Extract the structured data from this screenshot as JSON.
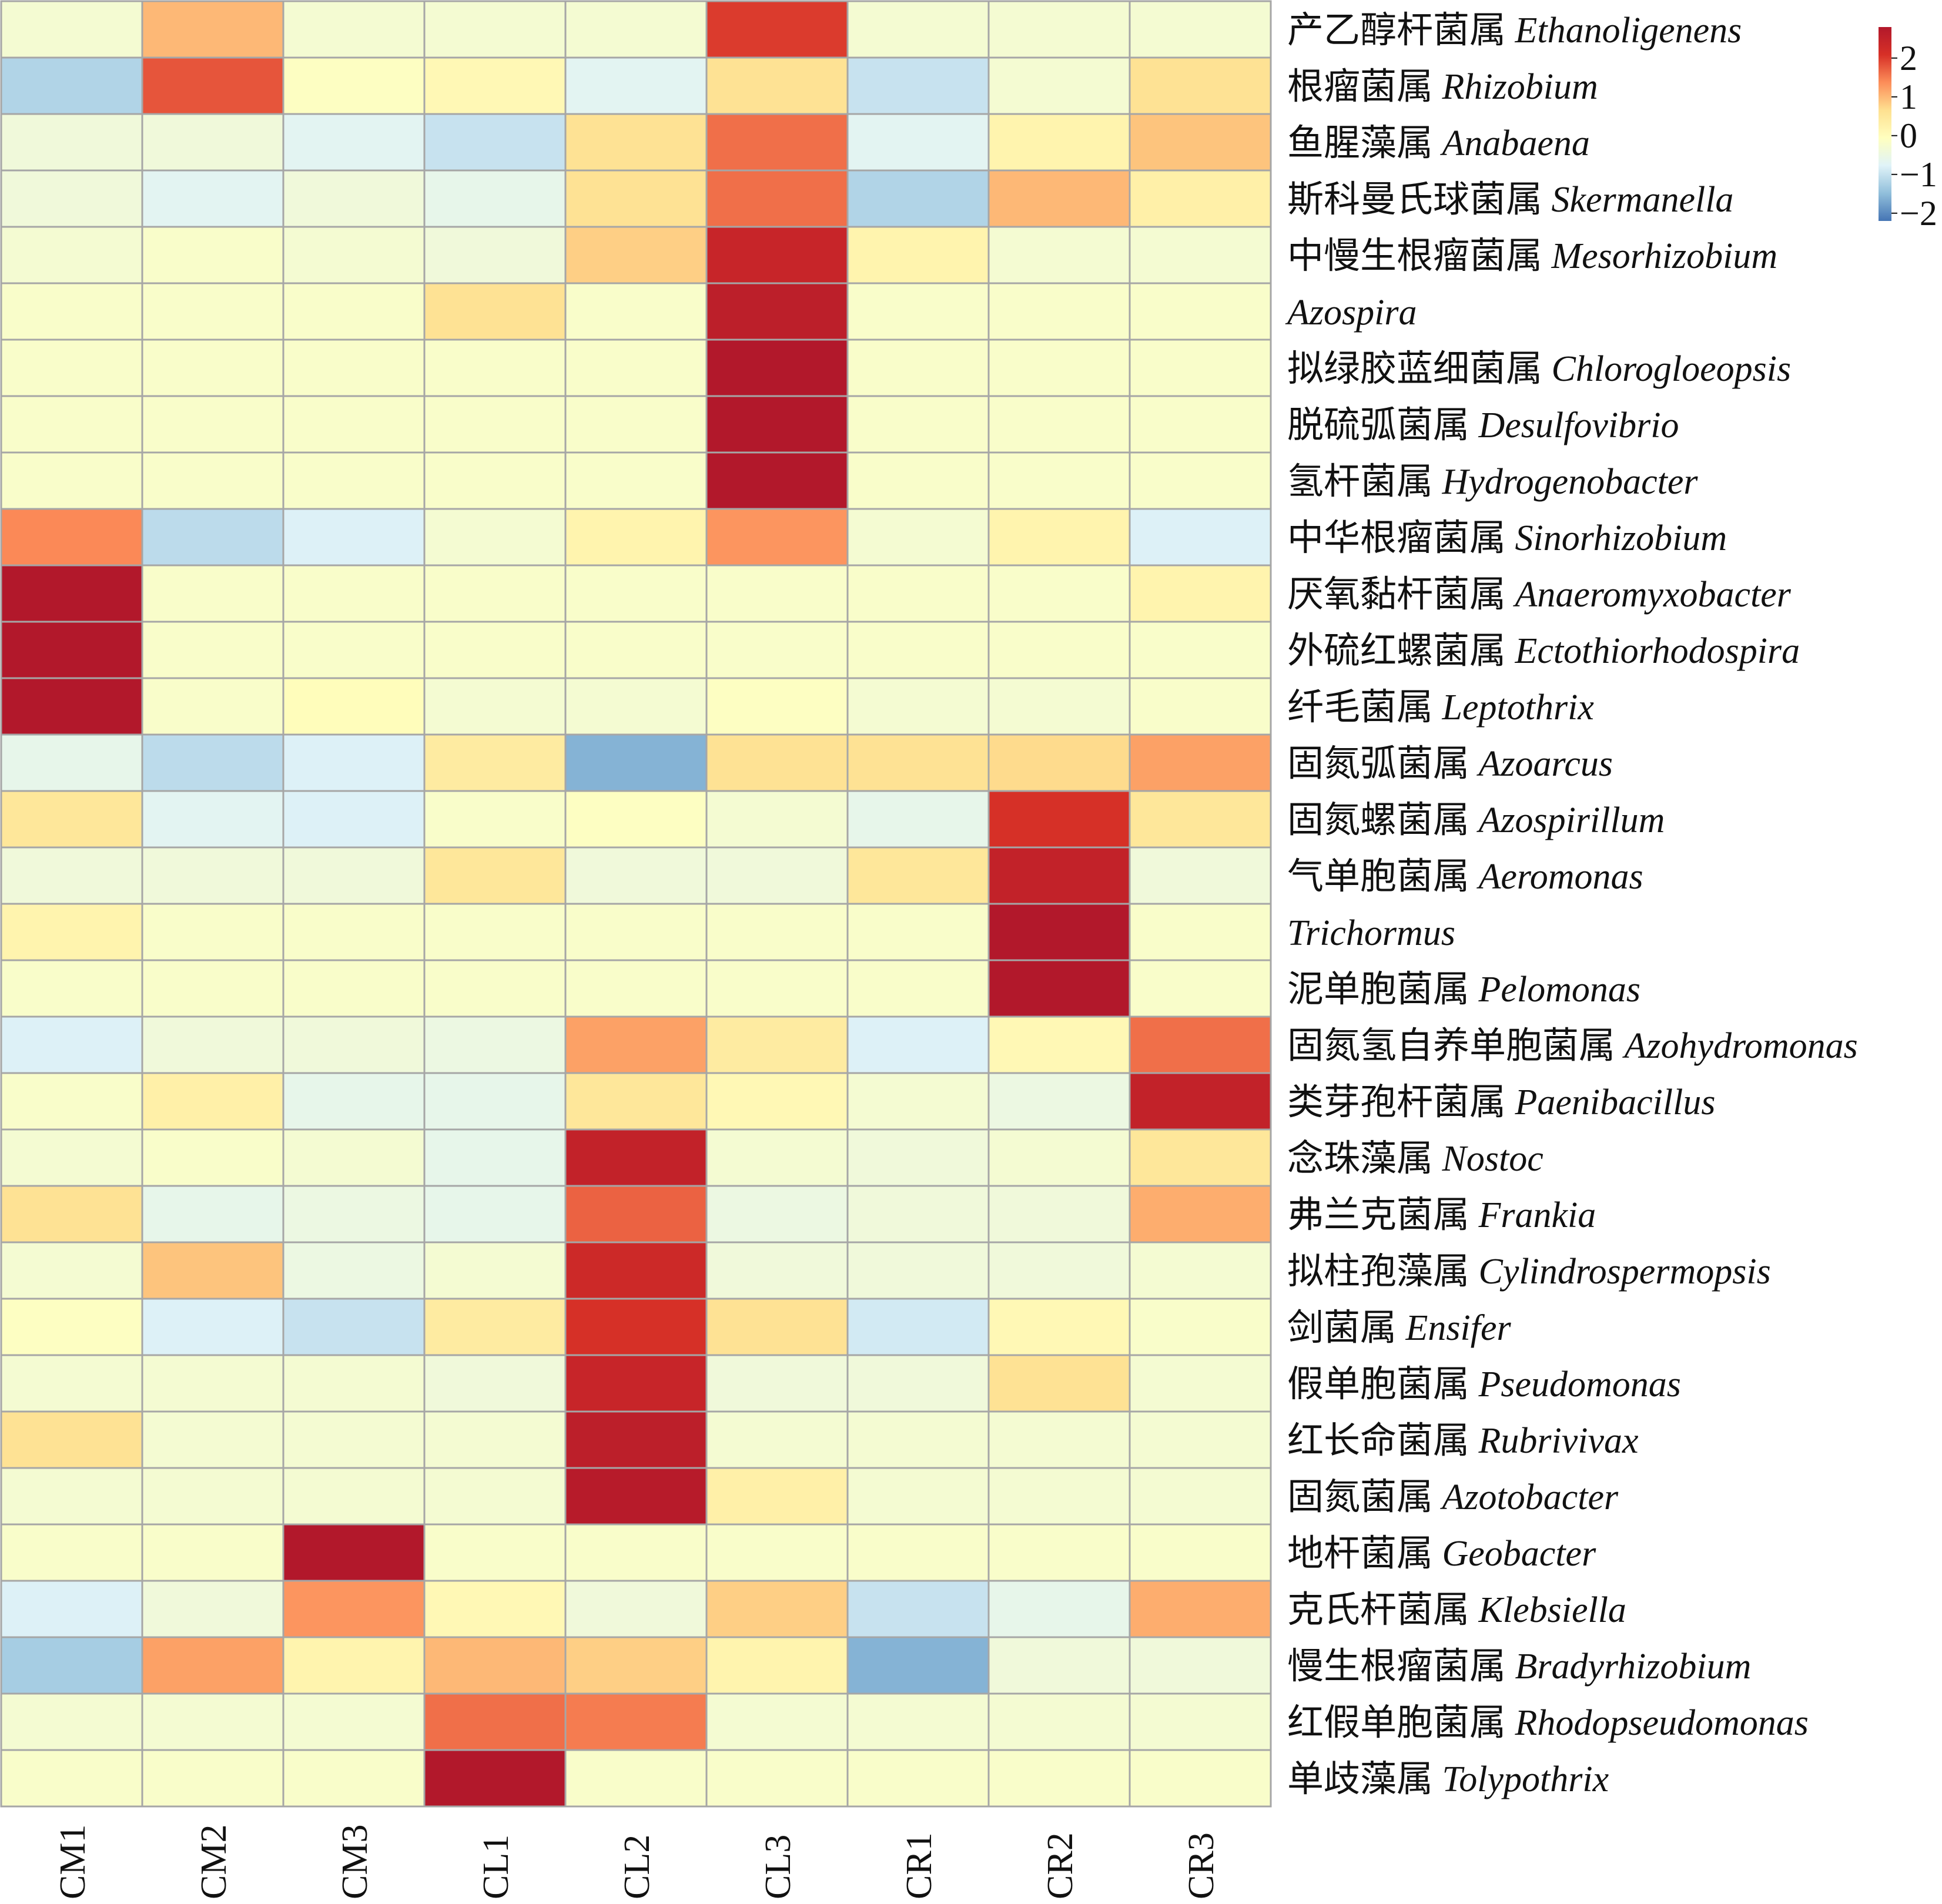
{
  "chart_data": {
    "type": "heatmap",
    "title": "",
    "xlabel": "",
    "ylabel": "",
    "columns": [
      "CM1",
      "CM2",
      "CM3",
      "CL1",
      "CL2",
      "CL3",
      "CR1",
      "CR2",
      "CR3"
    ],
    "rows": [
      {
        "cn": "产乙醇杆菌属",
        "latin": "Ethanoligenens"
      },
      {
        "cn": "根瘤菌属",
        "latin": "Rhizobium"
      },
      {
        "cn": "鱼腥藻属",
        "latin": "Anabaena"
      },
      {
        "cn": "斯科曼氏球菌属",
        "latin": "Skermanella"
      },
      {
        "cn": "中慢生根瘤菌属",
        "latin": "Mesorhizobium"
      },
      {
        "cn": "",
        "latin": "Azospira"
      },
      {
        "cn": "拟绿胶蓝细菌属",
        "latin": "Chlorogloeopsis"
      },
      {
        "cn": "脱硫弧菌属",
        "latin": "Desulfovibrio"
      },
      {
        "cn": "氢杆菌属",
        "latin": "Hydrogenobacter"
      },
      {
        "cn": "中华根瘤菌属",
        "latin": "Sinorhizobium"
      },
      {
        "cn": "厌氧黏杆菌属",
        "latin": "Anaeromyxobacter"
      },
      {
        "cn": "外硫红螺菌属",
        "latin": "Ectothiorhodospira"
      },
      {
        "cn": "纤毛菌属",
        "latin": "Leptothrix"
      },
      {
        "cn": "固氮弧菌属",
        "latin": "Azoarcus"
      },
      {
        "cn": "固氮螺菌属",
        "latin": "Azospirillum"
      },
      {
        "cn": "气单胞菌属",
        "latin": "Aeromonas"
      },
      {
        "cn": "",
        "latin": "Trichormus"
      },
      {
        "cn": "泥单胞菌属",
        "latin": "Pelomonas"
      },
      {
        "cn": "固氮氢自养单胞菌属",
        "latin": "Azohydromonas"
      },
      {
        "cn": "类芽孢杆菌属",
        "latin": "Paenibacillus"
      },
      {
        "cn": "念珠藻属",
        "latin": "Nostoc"
      },
      {
        "cn": "弗兰克菌属",
        "latin": "Frankia"
      },
      {
        "cn": "拟柱孢藻属",
        "latin": "Cylindrospermopsis"
      },
      {
        "cn": "剑菌属",
        "latin": "Ensifer"
      },
      {
        "cn": "假单胞菌属",
        "latin": "Pseudomonas"
      },
      {
        "cn": "红长命菌属",
        "latin": "Rubrivivax"
      },
      {
        "cn": "固氮菌属",
        "latin": "Azotobacter"
      },
      {
        "cn": "地杆菌属",
        "latin": "Geobacter"
      },
      {
        "cn": "克氏杆菌属",
        "latin": "Klebsiella"
      },
      {
        "cn": "慢生根瘤菌属",
        "latin": "Bradyrhizobium"
      },
      {
        "cn": "红假单胞菌属",
        "latin": "Rhodopseudomonas"
      },
      {
        "cn": "单歧藻属",
        "latin": "Tolypothrix"
      }
    ],
    "values": [
      [
        -0.3,
        1.0,
        -0.3,
        -0.3,
        -0.3,
        2.0,
        -0.3,
        -0.3,
        -0.3
      ],
      [
        -1.2,
        1.8,
        -0.1,
        0.1,
        -0.7,
        0.6,
        -1.0,
        -0.3,
        0.6
      ],
      [
        -0.4,
        -0.4,
        -0.7,
        -1.0,
        0.6,
        1.6,
        -0.7,
        0.2,
        0.9
      ],
      [
        -0.4,
        -0.7,
        -0.4,
        -0.6,
        0.6,
        1.6,
        -1.2,
        1.0,
        0.3
      ],
      [
        -0.3,
        -0.2,
        -0.3,
        -0.4,
        0.8,
        2.4,
        0.2,
        -0.3,
        -0.3
      ],
      [
        -0.2,
        -0.2,
        -0.2,
        0.6,
        -0.2,
        2.6,
        -0.2,
        -0.2,
        -0.2
      ],
      [
        -0.2,
        -0.2,
        -0.2,
        -0.2,
        -0.2,
        2.8,
        -0.2,
        -0.2,
        -0.2
      ],
      [
        -0.2,
        -0.2,
        -0.2,
        -0.2,
        -0.2,
        2.8,
        -0.2,
        -0.2,
        -0.2
      ],
      [
        -0.2,
        -0.2,
        -0.2,
        -0.2,
        -0.2,
        2.8,
        -0.2,
        -0.2,
        -0.2
      ],
      [
        1.4,
        -1.1,
        -0.8,
        -0.3,
        0.2,
        1.3,
        -0.3,
        0.2,
        -0.8
      ],
      [
        2.8,
        -0.2,
        -0.2,
        -0.2,
        -0.2,
        -0.2,
        -0.2,
        -0.2,
        0.2
      ],
      [
        2.8,
        -0.2,
        -0.2,
        -0.2,
        -0.2,
        -0.2,
        -0.2,
        -0.2,
        -0.2
      ],
      [
        2.8,
        -0.2,
        0.0,
        -0.3,
        -0.3,
        -0.1,
        -0.3,
        -0.3,
        -0.2
      ],
      [
        -0.6,
        -1.1,
        -0.8,
        0.4,
        -1.6,
        0.6,
        0.6,
        0.7,
        1.2
      ],
      [
        0.5,
        -0.7,
        -0.8,
        -0.2,
        -0.1,
        -0.3,
        -0.6,
        2.1,
        0.5
      ],
      [
        -0.4,
        -0.4,
        -0.4,
        0.5,
        -0.4,
        -0.4,
        0.5,
        2.5,
        -0.4
      ],
      [
        0.2,
        -0.2,
        -0.2,
        -0.2,
        -0.2,
        -0.2,
        -0.2,
        2.8,
        -0.2
      ],
      [
        -0.2,
        -0.2,
        -0.2,
        -0.2,
        -0.2,
        -0.2,
        -0.2,
        2.8,
        -0.2
      ],
      [
        -0.8,
        -0.4,
        -0.4,
        -0.5,
        1.2,
        0.4,
        -0.8,
        0.1,
        1.6
      ],
      [
        -0.2,
        0.3,
        -0.6,
        -0.6,
        0.5,
        0.1,
        -0.3,
        -0.5,
        2.5
      ],
      [
        -0.3,
        -0.2,
        -0.3,
        -0.6,
        2.5,
        -0.3,
        -0.4,
        -0.3,
        0.5
      ],
      [
        0.6,
        -0.6,
        -0.5,
        -0.6,
        1.7,
        -0.5,
        -0.4,
        -0.4,
        1.1
      ],
      [
        -0.3,
        0.9,
        -0.5,
        -0.3,
        2.3,
        -0.4,
        -0.4,
        -0.4,
        -0.3
      ],
      [
        -0.1,
        -0.8,
        -1.0,
        0.4,
        2.1,
        0.6,
        -0.9,
        0.1,
        -0.2
      ],
      [
        -0.3,
        -0.3,
        -0.3,
        -0.4,
        2.4,
        -0.4,
        -0.4,
        0.6,
        -0.3
      ],
      [
        0.6,
        -0.3,
        -0.3,
        -0.3,
        2.6,
        -0.3,
        -0.3,
        -0.3,
        -0.3
      ],
      [
        -0.3,
        -0.3,
        -0.3,
        -0.3,
        2.7,
        0.3,
        -0.3,
        -0.3,
        -0.3
      ],
      [
        -0.2,
        -0.2,
        2.8,
        -0.2,
        -0.2,
        -0.2,
        -0.2,
        -0.2,
        -0.2
      ],
      [
        -0.8,
        -0.4,
        1.3,
        0.1,
        -0.4,
        0.8,
        -1.0,
        -0.6,
        1.1
      ],
      [
        -1.3,
        1.2,
        0.2,
        1.0,
        0.8,
        0.2,
        -1.6,
        -0.4,
        -0.4
      ],
      [
        -0.3,
        -0.3,
        -0.3,
        1.6,
        1.5,
        -0.3,
        -0.3,
        -0.3,
        -0.3
      ],
      [
        -0.2,
        -0.2,
        -0.2,
        2.8,
        -0.2,
        -0.2,
        -0.2,
        -0.2,
        -0.2
      ]
    ],
    "legend": {
      "position": "top-right",
      "ticks": [
        {
          "value": 2,
          "label": "2"
        },
        {
          "value": 1,
          "label": "1"
        },
        {
          "value": 0,
          "label": "0"
        },
        {
          "value": -1,
          "label": "−1"
        },
        {
          "value": -2,
          "label": "−2"
        }
      ],
      "range": [
        -2.2,
        2.8
      ]
    },
    "grid": true,
    "colorscale": [
      "#4575b4",
      "#91bfdb",
      "#e0f3f8",
      "#ffffbf",
      "#fee090",
      "#fc8d59",
      "#d73027",
      "#b2182b"
    ],
    "cell_border_color": "#a6a6a6"
  }
}
